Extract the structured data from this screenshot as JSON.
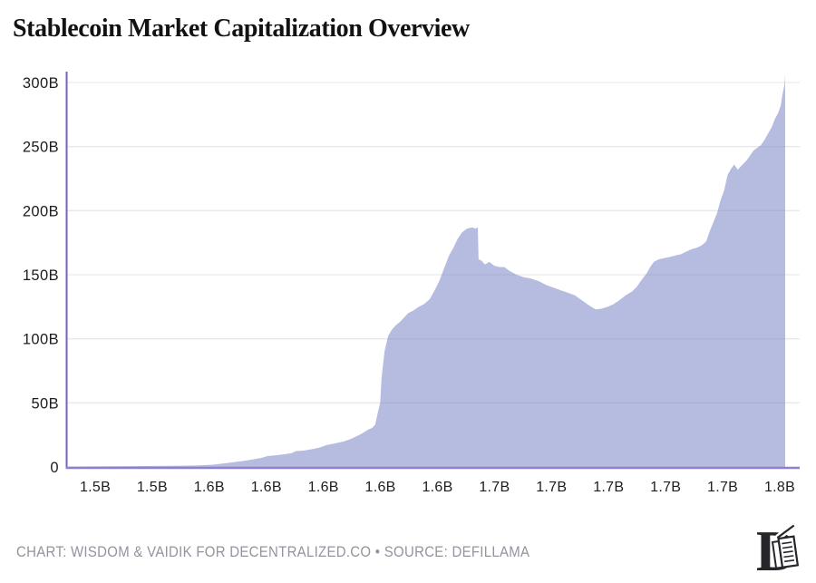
{
  "chart": {
    "title": "Stablecoin Market Capitalization Overview"
  },
  "chart_data": {
    "type": "area",
    "title": "Stablecoin Market Capitalization Overview",
    "unit": "billions USD",
    "ylabel": "",
    "xlabel": "",
    "ylim": [
      0,
      300
    ],
    "grid": "horizontal",
    "legend": "none",
    "y_ticks": [
      0,
      50,
      100,
      150,
      200,
      250,
      300
    ],
    "y_tick_labels": [
      "0",
      "50B",
      "100B",
      "150B",
      "200B",
      "250B",
      "300B"
    ],
    "x_tick_labels": [
      "1.5B",
      "1.5B",
      "1.6B",
      "1.6B",
      "1.6B",
      "1.6B",
      "1.6B",
      "1.7B",
      "1.7B",
      "1.7B",
      "1.7B",
      "1.7B",
      "1.8B"
    ],
    "fill_color": "#7a83c7",
    "fill_opacity": 0.55,
    "axis_color": "#7b5fc7",
    "baseline_color": "#8d80d0",
    "gridline_color": "#e9e9e9",
    "tick_label_color": "#1d1d1f",
    "series": [
      {
        "name": "stablecoin-market-cap",
        "points": [
          [
            0,
            0.3
          ],
          [
            0.058,
            0.5
          ],
          [
            0.109,
            0.7
          ],
          [
            0.159,
            1
          ],
          [
            0.184,
            1.3
          ],
          [
            0.203,
            1.8
          ],
          [
            0.222,
            3
          ],
          [
            0.237,
            4
          ],
          [
            0.25,
            5
          ],
          [
            0.26,
            6
          ],
          [
            0.27,
            7
          ],
          [
            0.279,
            8.5
          ],
          [
            0.292,
            9.2
          ],
          [
            0.304,
            10
          ],
          [
            0.313,
            10.8
          ],
          [
            0.318,
            12.3
          ],
          [
            0.33,
            12.8
          ],
          [
            0.342,
            14
          ],
          [
            0.351,
            15
          ],
          [
            0.361,
            17
          ],
          [
            0.374,
            18.5
          ],
          [
            0.386,
            20
          ],
          [
            0.396,
            22
          ],
          [
            0.405,
            24.5
          ],
          [
            0.412,
            26.5
          ],
          [
            0.419,
            29
          ],
          [
            0.425,
            30.5
          ],
          [
            0.429,
            33
          ],
          [
            0.433,
            43
          ],
          [
            0.436,
            50
          ],
          [
            0.438,
            70
          ],
          [
            0.442,
            90
          ],
          [
            0.447,
            102
          ],
          [
            0.452,
            107
          ],
          [
            0.457,
            110
          ],
          [
            0.465,
            114
          ],
          [
            0.47,
            117
          ],
          [
            0.475,
            120
          ],
          [
            0.482,
            122
          ],
          [
            0.49,
            125
          ],
          [
            0.497,
            127
          ],
          [
            0.505,
            131
          ],
          [
            0.513,
            139
          ],
          [
            0.519,
            146
          ],
          [
            0.525,
            155
          ],
          [
            0.532,
            165
          ],
          [
            0.538,
            171
          ],
          [
            0.544,
            178
          ],
          [
            0.55,
            183
          ],
          [
            0.557,
            186
          ],
          [
            0.564,
            187
          ],
          [
            0.569,
            186
          ],
          [
            0.572,
            187
          ],
          [
            0.573,
            162
          ],
          [
            0.577,
            161
          ],
          [
            0.582,
            158
          ],
          [
            0.588,
            160
          ],
          [
            0.595,
            157
          ],
          [
            0.602,
            156
          ],
          [
            0.609,
            156
          ],
          [
            0.616,
            153
          ],
          [
            0.626,
            150
          ],
          [
            0.636,
            148
          ],
          [
            0.646,
            147
          ],
          [
            0.657,
            145
          ],
          [
            0.667,
            142
          ],
          [
            0.677,
            140
          ],
          [
            0.687,
            138
          ],
          [
            0.697,
            136
          ],
          [
            0.707,
            134
          ],
          [
            0.717,
            130
          ],
          [
            0.727,
            126
          ],
          [
            0.736,
            123
          ],
          [
            0.744,
            123.5
          ],
          [
            0.753,
            125
          ],
          [
            0.761,
            127
          ],
          [
            0.769,
            130
          ],
          [
            0.778,
            134
          ],
          [
            0.787,
            137
          ],
          [
            0.794,
            141
          ],
          [
            0.8,
            146
          ],
          [
            0.807,
            151
          ],
          [
            0.812,
            156
          ],
          [
            0.817,
            160
          ],
          [
            0.824,
            162
          ],
          [
            0.832,
            163
          ],
          [
            0.84,
            164
          ],
          [
            0.847,
            165
          ],
          [
            0.855,
            166
          ],
          [
            0.862,
            168
          ],
          [
            0.87,
            170
          ],
          [
            0.877,
            171
          ],
          [
            0.884,
            173
          ],
          [
            0.89,
            176
          ],
          [
            0.895,
            184
          ],
          [
            0.9,
            191
          ],
          [
            0.905,
            198
          ],
          [
            0.91,
            208
          ],
          [
            0.915,
            216
          ],
          [
            0.92,
            228
          ],
          [
            0.925,
            233
          ],
          [
            0.929,
            236
          ],
          [
            0.934,
            232
          ],
          [
            0.939,
            235
          ],
          [
            0.946,
            239
          ],
          [
            0.951,
            243
          ],
          [
            0.956,
            247
          ],
          [
            0.961,
            249
          ],
          [
            0.966,
            251
          ],
          [
            0.971,
            255
          ],
          [
            0.976,
            260
          ],
          [
            0.981,
            265
          ],
          [
            0.986,
            272
          ],
          [
            0.99,
            276
          ],
          [
            0.994,
            282
          ],
          [
            0.996,
            290
          ],
          [
            0.999,
            298
          ],
          [
            1,
            306
          ]
        ]
      }
    ]
  },
  "footer": {
    "credit": "CHART: WISDOM & VAIDIK FOR DECENTRALIZED.CO • SOURCE: DEFILLAMA",
    "logo": "decentralized-co-logo"
  }
}
